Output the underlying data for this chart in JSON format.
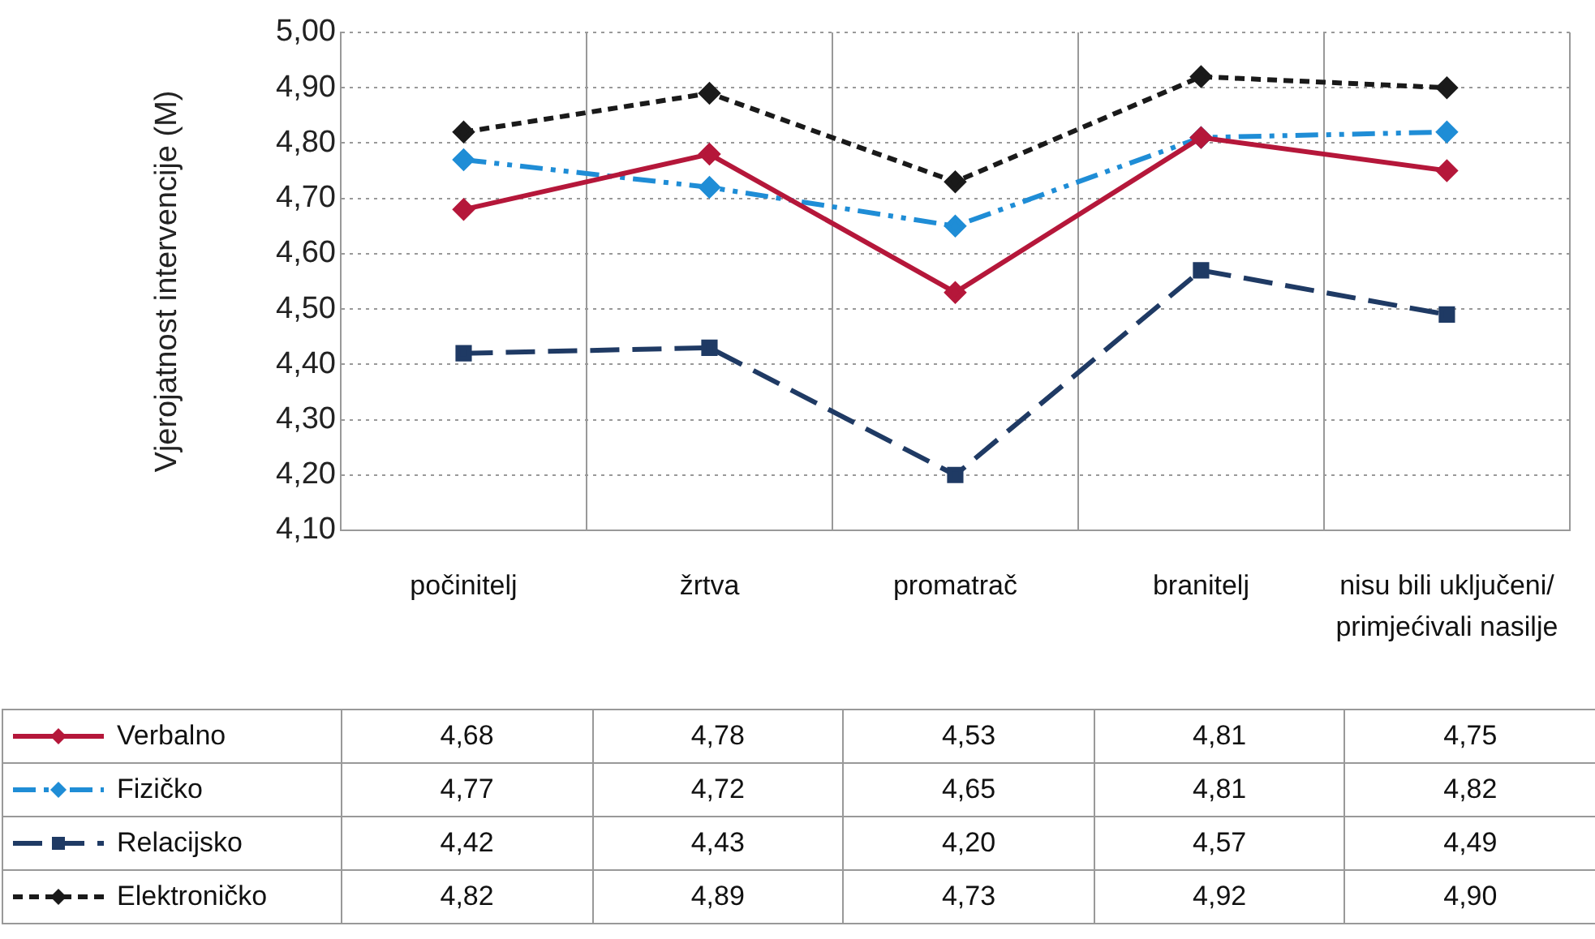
{
  "chart_data": {
    "type": "line",
    "ylabel": "Vjerojatnost intervencije (M)",
    "categories": [
      "počinitelj",
      "žrtva",
      "promatrač",
      "branitelj",
      "nisu bili uključeni/ primjećivali nasilje"
    ],
    "series": [
      {
        "name": "Verbalno",
        "color": "#b5173a",
        "values": [
          4.68,
          4.78,
          4.53,
          4.81,
          4.75
        ],
        "value_labels": [
          "4,68",
          "4,78",
          "4,53",
          "4,81",
          "4,75"
        ],
        "marker": "diamond",
        "line_style": "solid"
      },
      {
        "name": "Fizičko",
        "color": "#1f8dd6",
        "values": [
          4.77,
          4.72,
          4.65,
          4.81,
          4.82
        ],
        "value_labels": [
          "4,77",
          "4,72",
          "4,65",
          "4,81",
          "4,82"
        ],
        "marker": "diamond",
        "line_style": "dashed"
      },
      {
        "name": "Relacijsko",
        "color": "#1f3a64",
        "values": [
          4.42,
          4.43,
          4.2,
          4.57,
          4.49
        ],
        "value_labels": [
          "4,42",
          "4,43",
          "4,20",
          "4,57",
          "4,49"
        ],
        "marker": "square",
        "line_style": "dashed"
      },
      {
        "name": "Elektroničko",
        "color": "#1a1a1a",
        "values": [
          4.82,
          4.89,
          4.73,
          4.92,
          4.9
        ],
        "value_labels": [
          "4,82",
          "4,89",
          "4,73",
          "4,92",
          "4,90"
        ],
        "marker": "diamond",
        "line_style": "dashed"
      }
    ],
    "ylim": [
      4.1,
      5.0
    ],
    "yticks": [
      {
        "value": 4.1,
        "label": "4,10"
      },
      {
        "value": 4.2,
        "label": "4,20"
      },
      {
        "value": 4.3,
        "label": "4,30"
      },
      {
        "value": 4.4,
        "label": "4,40"
      },
      {
        "value": 4.5,
        "label": "4,50"
      },
      {
        "value": 4.6,
        "label": "4,60"
      },
      {
        "value": 4.7,
        "label": "4,70"
      },
      {
        "value": 4.8,
        "label": "4,80"
      },
      {
        "value": 4.9,
        "label": "4,90"
      },
      {
        "value": 5.0,
        "label": "5,00"
      }
    ],
    "grid": true,
    "legend": "bottom left"
  }
}
